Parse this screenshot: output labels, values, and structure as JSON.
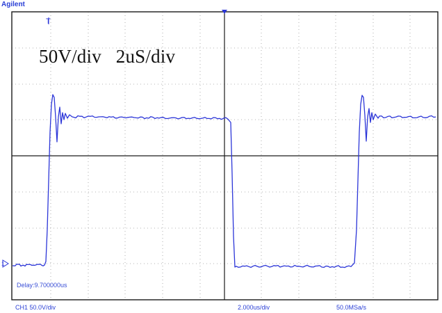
{
  "header": {
    "brand": "Agilent"
  },
  "annotation": {
    "text": "50V/div   2uS/div"
  },
  "readouts": {
    "delay": "Delay:9.700000us",
    "channel_scale": "CH1 50.0V/div",
    "timebase": "2.000us/div",
    "sample_rate": "50.0MSa/s"
  },
  "markers": {
    "trigger_marker": "T",
    "ground_marker": "1"
  },
  "colors": {
    "trace": "#2b35d8",
    "grid": "#9a9a9a",
    "axis": "#1a1a1a",
    "text_blue": "#2a3fd6"
  }
}
